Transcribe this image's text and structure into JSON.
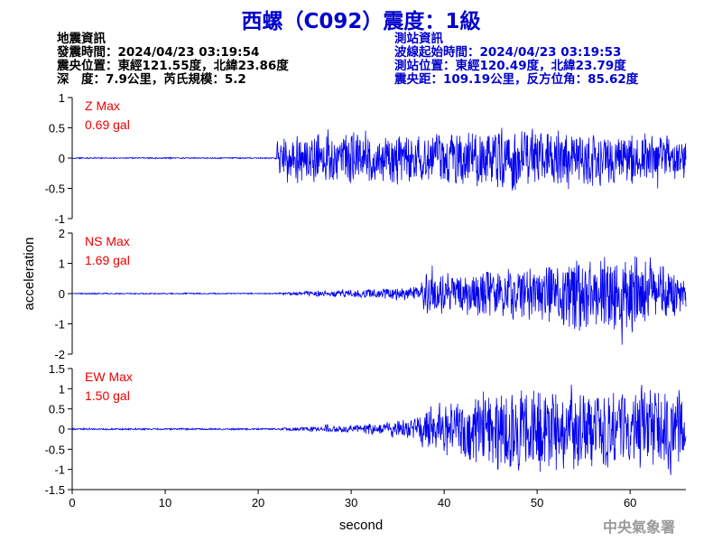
{
  "title": "西螺（C092）震度：1級",
  "event_info": {
    "heading": "地震資訊",
    "origin_time": "發震時間：2024/04/23 03:19:54",
    "epicenter": "震央位置：東經121.55度，北緯23.86度",
    "depth_magnitude": "深　度：7.9公里，芮氏規模：5.2"
  },
  "station_info": {
    "heading": "測站資訊",
    "wave_start_time": "波線起始時間：2024/04/23 03:19:53",
    "station_location": "測站位置：東經120.49度，北緯23.79度",
    "distance_azimuth": "震央距：109.19公里，反方位角：85.62度"
  },
  "footer": "中央氣象署",
  "colors": {
    "trace": "#0000ee",
    "label": "#ee0000",
    "title": "#0000cc",
    "axis": "#000000"
  },
  "chart_data": {
    "type": "line",
    "xlabel": "second",
    "ylabel": "acceleration",
    "xlim": [
      0,
      66
    ],
    "xticks": [
      "0",
      "10",
      "20",
      "30",
      "40",
      "50",
      "60"
    ],
    "panels": [
      {
        "name": "Z",
        "label_line1": "Z Max",
        "label_line2": "0.69 gal",
        "max_gal": 0.69,
        "ylim": [
          -1,
          1
        ],
        "yticks": [
          "1",
          "0.5",
          "0",
          "-0.5",
          "-1"
        ],
        "envelope": [
          [
            0,
            0.01
          ],
          [
            21.9,
            0.01
          ],
          [
            22.1,
            0.35
          ],
          [
            24,
            0.4
          ],
          [
            30,
            0.4
          ],
          [
            40,
            0.45
          ],
          [
            47,
            0.55
          ],
          [
            50,
            0.45
          ],
          [
            55,
            0.45
          ],
          [
            60,
            0.4
          ],
          [
            66,
            0.35
          ]
        ]
      },
      {
        "name": "NS",
        "label_line1": "NS Max",
        "label_line2": "1.69 gal",
        "max_gal": 1.69,
        "ylim": [
          -2,
          2
        ],
        "yticks": [
          "2",
          "1",
          "0",
          "-1",
          "-2"
        ],
        "envelope": [
          [
            0,
            0.02
          ],
          [
            22,
            0.02
          ],
          [
            25,
            0.08
          ],
          [
            30,
            0.13
          ],
          [
            35,
            0.2
          ],
          [
            37.5,
            0.3
          ],
          [
            38,
            0.8
          ],
          [
            40,
            0.7
          ],
          [
            45,
            0.8
          ],
          [
            50,
            1.0
          ],
          [
            55,
            1.2
          ],
          [
            60,
            1.3
          ],
          [
            63,
            1.0
          ],
          [
            66,
            0.6
          ]
        ]
      },
      {
        "name": "EW",
        "label_line1": "EW Max",
        "label_line2": "1.50 gal",
        "max_gal": 1.5,
        "ylim": [
          -1.5,
          1.5
        ],
        "yticks": [
          "1.5",
          "1",
          "0.5",
          "0",
          "-0.5",
          "-1",
          "-1.5"
        ],
        "envelope": [
          [
            0,
            0.02
          ],
          [
            22,
            0.02
          ],
          [
            25,
            0.06
          ],
          [
            30,
            0.1
          ],
          [
            35,
            0.2
          ],
          [
            37,
            0.3
          ],
          [
            38,
            0.55
          ],
          [
            40,
            0.65
          ],
          [
            43,
            0.9
          ],
          [
            45,
            1.05
          ],
          [
            50,
            1.0
          ],
          [
            55,
            1.0
          ],
          [
            60,
            1.1
          ],
          [
            64,
            1.1
          ],
          [
            66,
            0.9
          ]
        ]
      }
    ]
  }
}
